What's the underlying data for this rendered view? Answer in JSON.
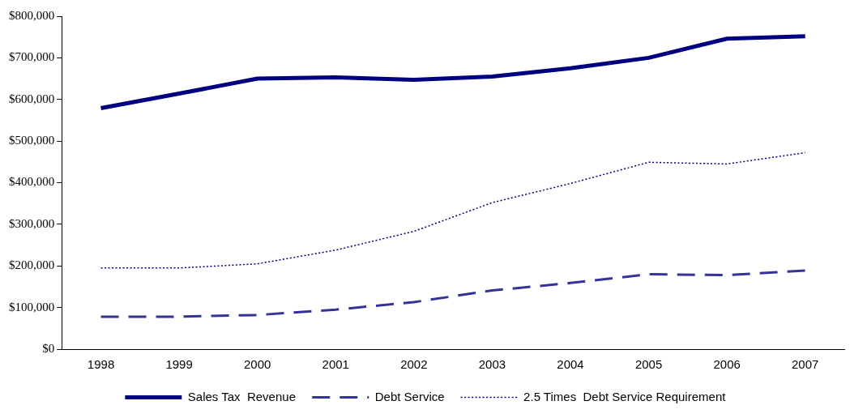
{
  "chart_data": {
    "type": "line",
    "categories": [
      "1998",
      "1999",
      "2000",
      "2001",
      "2002",
      "2003",
      "2004",
      "2005",
      "2006",
      "2007"
    ],
    "series": [
      {
        "name": "Sales Tax  Revenue",
        "color": "#000080",
        "line_style": "solid",
        "values": [
          579000,
          614000,
          650000,
          653000,
          647000,
          655000,
          675000,
          700000,
          746000,
          752000
        ]
      },
      {
        "name": "Debt Service",
        "color": "#333399",
        "line_style": "dashed",
        "values": [
          78000,
          78000,
          82000,
          95000,
          113000,
          141000,
          159000,
          180000,
          178000,
          189000
        ]
      },
      {
        "name": "2.5 Times  Debt Service Requirement",
        "color": "#000080",
        "line_style": "dotted",
        "values": [
          195000,
          195000,
          205000,
          238000,
          283000,
          352000,
          398000,
          449000,
          445000,
          472000
        ]
      }
    ],
    "ylim": [
      0,
      800000
    ],
    "yticks": [
      {
        "value": 0,
        "label": "$0"
      },
      {
        "value": 100000,
        "label": "$100,000"
      },
      {
        "value": 200000,
        "label": "$200,000"
      },
      {
        "value": 300000,
        "label": "$300,000"
      },
      {
        "value": 400000,
        "label": "$400,000"
      },
      {
        "value": 500000,
        "label": "$500,000"
      },
      {
        "value": 600000,
        "label": "$600,000"
      },
      {
        "value": 700000,
        "label": "$700,000"
      },
      {
        "value": 800000,
        "label": "$800,000"
      }
    ],
    "grid": false,
    "legend": "bottom",
    "marker": "none"
  }
}
